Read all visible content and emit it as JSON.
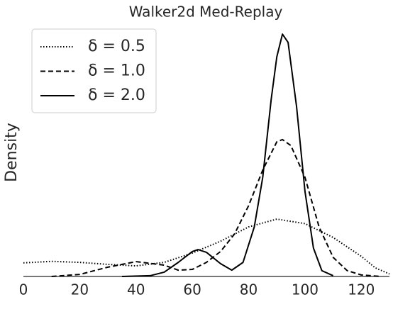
{
  "chart_data": {
    "type": "line",
    "title": "Walker2d Med-Replay",
    "ylabel": "Density",
    "xlim": [
      0,
      130
    ],
    "xticks": [
      0,
      20,
      40,
      60,
      80,
      100,
      120
    ],
    "ylim": [
      0,
      1
    ],
    "grid": false,
    "legend": "upper left",
    "series": [
      {
        "name": "δ = 0.5",
        "color": "#000000",
        "dash": "dotted",
        "x": [
          0,
          10,
          20,
          30,
          40,
          50,
          60,
          70,
          80,
          90,
          100,
          110,
          120,
          125,
          130
        ],
        "values": [
          0.054,
          0.06,
          0.056,
          0.048,
          0.042,
          0.056,
          0.093,
          0.14,
          0.197,
          0.228,
          0.21,
          0.155,
          0.08,
          0.034,
          0.01
        ]
      },
      {
        "name": "δ = 1.0",
        "color": "#000000",
        "dash": "dashed",
        "x": [
          10,
          20,
          30,
          40,
          50,
          55,
          60,
          65,
          70,
          75,
          80,
          85,
          90,
          92,
          95,
          100,
          105,
          110,
          115,
          120,
          127
        ],
        "values": [
          0.0,
          0.008,
          0.037,
          0.059,
          0.045,
          0.025,
          0.028,
          0.056,
          0.099,
          0.169,
          0.282,
          0.423,
          0.535,
          0.544,
          0.52,
          0.394,
          0.197,
          0.076,
          0.023,
          0.006,
          0.0
        ]
      },
      {
        "name": "δ = 2.0",
        "color": "#000000",
        "dash": "solid",
        "x": [
          35,
          45,
          50,
          55,
          60,
          62,
          65,
          70,
          74,
          78,
          82,
          85,
          88,
          90,
          92,
          94,
          97,
          100,
          103,
          106,
          110
        ],
        "values": [
          0.0,
          0.003,
          0.017,
          0.056,
          0.099,
          0.107,
          0.096,
          0.051,
          0.025,
          0.056,
          0.197,
          0.394,
          0.704,
          0.873,
          0.963,
          0.93,
          0.676,
          0.338,
          0.113,
          0.023,
          0.003
        ]
      }
    ]
  }
}
